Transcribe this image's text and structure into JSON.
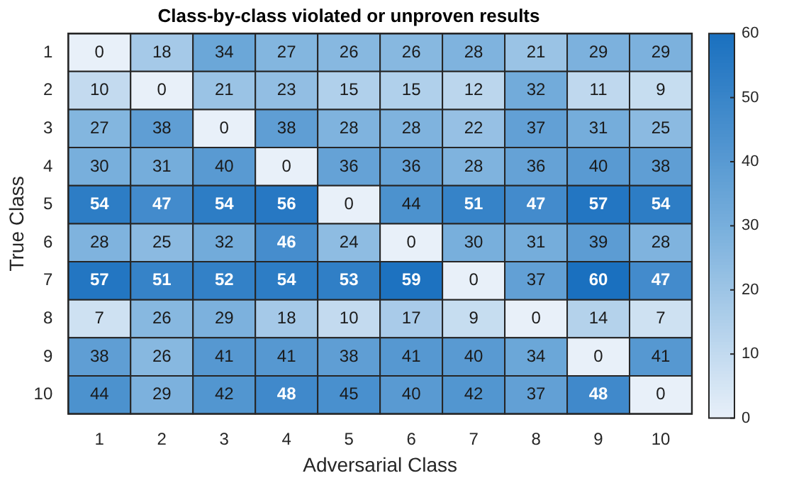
{
  "chart_data": {
    "type": "heatmap",
    "title": "Class-by-class violated or unproven results",
    "xlabel": "Adversarial Class",
    "ylabel": "True Class",
    "categories": [
      "1",
      "2",
      "3",
      "4",
      "5",
      "6",
      "7",
      "8",
      "9",
      "10"
    ],
    "y_categories": [
      "1",
      "2",
      "3",
      "4",
      "5",
      "6",
      "7",
      "8",
      "9",
      "10"
    ],
    "cells": [
      [
        0,
        18,
        34,
        27,
        26,
        26,
        28,
        21,
        29,
        29
      ],
      [
        10,
        0,
        21,
        23,
        15,
        15,
        12,
        32,
        11,
        9
      ],
      [
        27,
        38,
        0,
        38,
        28,
        28,
        22,
        37,
        31,
        25
      ],
      [
        30,
        31,
        40,
        0,
        36,
        36,
        28,
        36,
        40,
        38
      ],
      [
        54,
        47,
        54,
        56,
        0,
        44,
        51,
        47,
        57,
        54
      ],
      [
        28,
        25,
        32,
        46,
        24,
        0,
        30,
        31,
        39,
        28
      ],
      [
        57,
        51,
        52,
        54,
        53,
        59,
        0,
        37,
        60,
        47
      ],
      [
        7,
        26,
        29,
        18,
        10,
        17,
        9,
        0,
        14,
        7
      ],
      [
        38,
        26,
        41,
        41,
        38,
        41,
        40,
        34,
        0,
        41
      ],
      [
        44,
        29,
        42,
        48,
        45,
        40,
        42,
        37,
        48,
        0
      ]
    ],
    "clim": [
      0,
      60
    ],
    "cticks": [
      0,
      10,
      20,
      30,
      40,
      50,
      60
    ],
    "data_labels": true
  }
}
